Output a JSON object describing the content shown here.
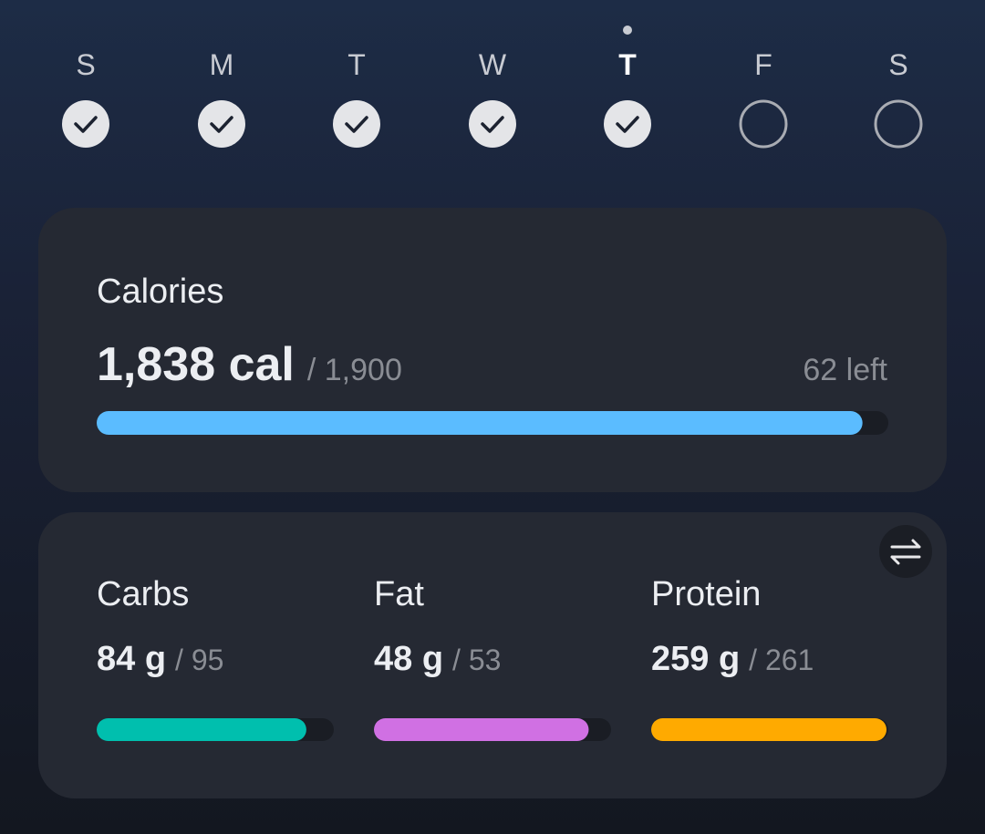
{
  "week": {
    "days": [
      {
        "label": "S",
        "done": true,
        "current": false
      },
      {
        "label": "M",
        "done": true,
        "current": false
      },
      {
        "label": "T",
        "done": true,
        "current": false
      },
      {
        "label": "W",
        "done": true,
        "current": false
      },
      {
        "label": "T",
        "done": true,
        "current": true
      },
      {
        "label": "F",
        "done": false,
        "current": false
      },
      {
        "label": "S",
        "done": false,
        "current": false
      }
    ]
  },
  "calories": {
    "title": "Calories",
    "consumed": {
      "value": 1838,
      "label": "1,838 cal"
    },
    "goal": {
      "value": 1900,
      "label": "/ 1,900"
    },
    "left": {
      "value": 62,
      "label": "62 left"
    },
    "color": "#5bbcff"
  },
  "macros": [
    {
      "name": "Carbs",
      "consumed": {
        "value": 84,
        "label": "84 g"
      },
      "goal": {
        "value": 95,
        "label": "/ 95"
      },
      "color": "#00bfae"
    },
    {
      "name": "Fat",
      "consumed": {
        "value": 48,
        "label": "48 g"
      },
      "goal": {
        "value": 53,
        "label": "/ 53"
      },
      "color": "#d070e3"
    },
    {
      "name": "Protein",
      "consumed": {
        "value": 259,
        "label": "259 g"
      },
      "goal": {
        "value": 261,
        "label": "/ 261"
      },
      "color": "#ffaa00"
    }
  ]
}
